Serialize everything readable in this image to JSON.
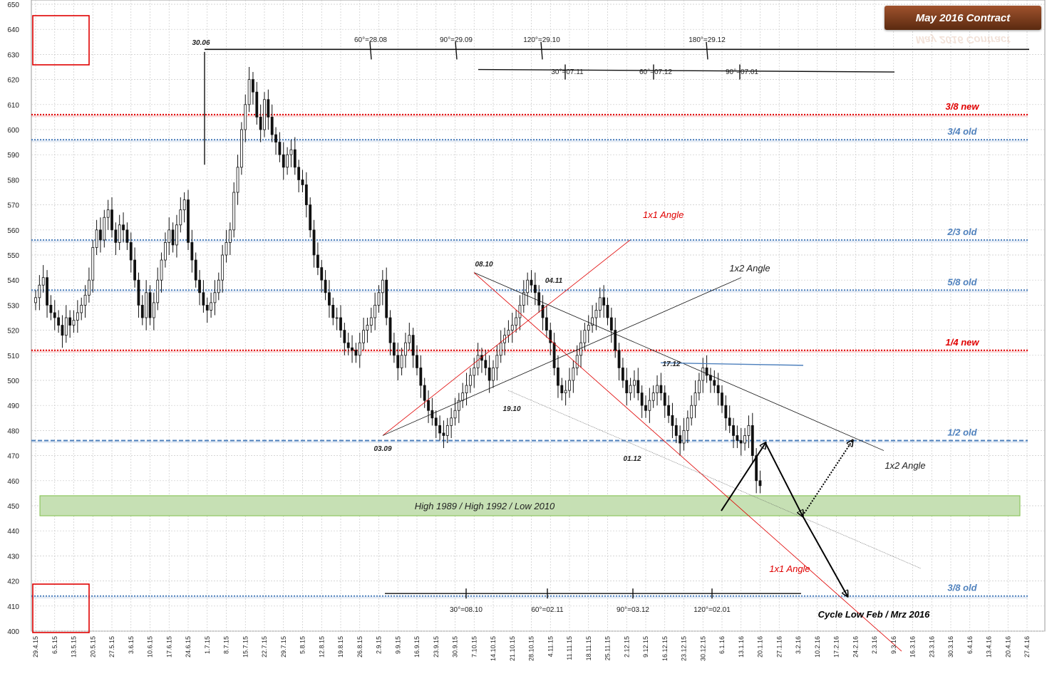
{
  "chart_data": {
    "type": "candlestick",
    "title": "May 2016 Contract",
    "ylim": [
      400,
      650
    ],
    "y_ticks": [
      400,
      410,
      420,
      430,
      440,
      450,
      460,
      470,
      480,
      490,
      500,
      510,
      520,
      530,
      540,
      550,
      560,
      570,
      580,
      590,
      600,
      610,
      620,
      630,
      640,
      650
    ],
    "x_ticks": [
      "29.4.15",
      "6.5.15",
      "13.5.15",
      "20.5.15",
      "27.5.15",
      "3.6.15",
      "10.6.15",
      "17.6.15",
      "24.6.15",
      "1.7.15",
      "8.7.15",
      "15.7.15",
      "22.7.15",
      "29.7.15",
      "5.8.15",
      "12.8.15",
      "19.8.15",
      "26.8.15",
      "2.9.15",
      "9.9.15",
      "16.9.15",
      "23.9.15",
      "30.9.15",
      "7.10.15",
      "14.10.15",
      "21.10.15",
      "28.10.15",
      "4.11.15",
      "11.11.15",
      "18.11.15",
      "25.11.15",
      "2.12.15",
      "9.12.15",
      "16.12.15",
      "23.12.15",
      "30.12.15",
      "6.1.16",
      "13.1.16",
      "20.1.16",
      "27.1.16",
      "3.2.16",
      "10.2.16",
      "17.2.16",
      "24.2.16",
      "2.3.16",
      "9.3.16",
      "16.3.16",
      "23.3.16",
      "30.3.16",
      "6.4.16",
      "13.4.16",
      "20.4.16",
      "27.4.16"
    ],
    "grid": true,
    "series_close": [
      [
        0,
        533
      ],
      [
        1,
        538
      ],
      [
        2,
        541
      ],
      [
        3,
        530
      ],
      [
        4,
        527
      ],
      [
        5,
        525
      ],
      [
        6,
        522
      ],
      [
        7,
        518
      ],
      [
        8,
        525
      ],
      [
        9,
        522
      ],
      [
        10,
        524
      ],
      [
        11,
        527
      ],
      [
        12,
        530
      ],
      [
        13,
        534
      ],
      [
        14,
        540
      ],
      [
        15,
        553
      ],
      [
        16,
        560
      ],
      [
        17,
        556
      ],
      [
        18,
        565
      ],
      [
        19,
        568
      ],
      [
        20,
        560
      ],
      [
        21,
        555
      ],
      [
        22,
        562
      ],
      [
        23,
        560
      ],
      [
        24,
        555
      ],
      [
        25,
        548
      ],
      [
        26,
        540
      ],
      [
        27,
        530
      ],
      [
        28,
        525
      ],
      [
        29,
        535
      ],
      [
        30,
        525
      ],
      [
        31,
        531
      ],
      [
        32,
        540
      ],
      [
        33,
        548
      ],
      [
        34,
        555
      ],
      [
        35,
        560
      ],
      [
        36,
        554
      ],
      [
        37,
        562
      ],
      [
        38,
        568
      ],
      [
        39,
        572
      ],
      [
        40,
        555
      ],
      [
        41,
        548
      ],
      [
        42,
        540
      ],
      [
        43,
        535
      ],
      [
        44,
        530
      ],
      [
        45,
        528
      ],
      [
        46,
        531
      ],
      [
        47,
        535
      ],
      [
        48,
        540
      ],
      [
        49,
        550
      ],
      [
        50,
        555
      ],
      [
        51,
        560
      ],
      [
        52,
        575
      ],
      [
        53,
        585
      ],
      [
        54,
        600
      ],
      [
        55,
        610
      ],
      [
        56,
        620
      ],
      [
        57,
        615
      ],
      [
        58,
        605
      ],
      [
        59,
        600
      ],
      [
        60,
        612
      ],
      [
        61,
        605
      ],
      [
        62,
        598
      ],
      [
        63,
        595
      ],
      [
        64,
        590
      ],
      [
        65,
        585
      ],
      [
        66,
        590
      ],
      [
        67,
        592
      ],
      [
        68,
        585
      ],
      [
        69,
        580
      ],
      [
        70,
        578
      ],
      [
        71,
        570
      ],
      [
        72,
        560
      ],
      [
        73,
        550
      ],
      [
        74,
        545
      ],
      [
        75,
        540
      ],
      [
        76,
        535
      ],
      [
        77,
        530
      ],
      [
        78,
        525
      ],
      [
        79,
        525
      ],
      [
        80,
        520
      ],
      [
        81,
        515
      ],
      [
        82,
        513
      ],
      [
        83,
        512
      ],
      [
        84,
        510
      ],
      [
        85,
        515
      ],
      [
        86,
        520
      ],
      [
        87,
        522
      ],
      [
        88,
        525
      ],
      [
        89,
        530
      ],
      [
        90,
        535
      ],
      [
        91,
        540
      ],
      [
        92,
        525
      ],
      [
        93,
        515
      ],
      [
        94,
        510
      ],
      [
        95,
        505
      ],
      [
        96,
        510
      ],
      [
        97,
        515
      ],
      [
        98,
        518
      ],
      [
        99,
        510
      ],
      [
        100,
        505
      ],
      [
        101,
        498
      ],
      [
        102,
        492
      ],
      [
        103,
        488
      ],
      [
        104,
        485
      ],
      [
        105,
        482
      ],
      [
        106,
        479
      ],
      [
        107,
        478
      ],
      [
        108,
        482
      ],
      [
        109,
        485
      ],
      [
        110,
        488
      ],
      [
        111,
        492
      ],
      [
        112,
        495
      ],
      [
        113,
        498
      ],
      [
        114,
        502
      ],
      [
        115,
        505
      ],
      [
        116,
        510
      ],
      [
        117,
        508
      ],
      [
        118,
        505
      ],
      [
        119,
        500
      ],
      [
        120,
        505
      ],
      [
        121,
        510
      ],
      [
        122,
        515
      ],
      [
        123,
        518
      ],
      [
        124,
        520
      ],
      [
        125,
        522
      ],
      [
        126,
        525
      ],
      [
        127,
        530
      ],
      [
        128,
        535
      ],
      [
        129,
        540
      ],
      [
        130,
        538
      ],
      [
        131,
        535
      ],
      [
        132,
        530
      ],
      [
        133,
        525
      ],
      [
        134,
        520
      ],
      [
        135,
        515
      ],
      [
        136,
        505
      ],
      [
        137,
        498
      ],
      [
        138,
        495
      ],
      [
        139,
        496
      ],
      [
        140,
        500
      ],
      [
        141,
        505
      ],
      [
        142,
        510
      ],
      [
        143,
        515
      ],
      [
        144,
        520
      ],
      [
        145,
        522
      ],
      [
        146,
        525
      ],
      [
        147,
        528
      ],
      [
        148,
        533
      ],
      [
        149,
        530
      ],
      [
        150,
        525
      ],
      [
        151,
        520
      ],
      [
        152,
        512
      ],
      [
        153,
        505
      ],
      [
        154,
        500
      ],
      [
        155,
        495
      ],
      [
        156,
        498
      ],
      [
        157,
        500
      ],
      [
        158,
        495
      ],
      [
        159,
        490
      ],
      [
        160,
        488
      ],
      [
        161,
        492
      ],
      [
        162,
        495
      ],
      [
        163,
        498
      ],
      [
        164,
        495
      ],
      [
        165,
        490
      ],
      [
        166,
        486
      ],
      [
        167,
        482
      ],
      [
        168,
        478
      ],
      [
        169,
        475
      ],
      [
        170,
        480
      ],
      [
        171,
        485
      ],
      [
        172,
        490
      ],
      [
        173,
        495
      ],
      [
        174,
        500
      ],
      [
        175,
        505
      ],
      [
        176,
        502
      ],
      [
        177,
        500
      ],
      [
        178,
        498
      ],
      [
        179,
        495
      ],
      [
        180,
        490
      ],
      [
        181,
        485
      ],
      [
        182,
        482
      ],
      [
        183,
        478
      ],
      [
        184,
        476
      ],
      [
        185,
        475
      ],
      [
        186,
        478
      ],
      [
        187,
        482
      ],
      [
        188,
        470
      ],
      [
        189,
        460
      ],
      [
        190,
        458
      ]
    ],
    "levels": [
      {
        "name": "3/8 new",
        "value": 606,
        "color": "#e00000",
        "style": "dotted"
      },
      {
        "name": "3/4 old",
        "value": 596,
        "color": "#4f81bd",
        "style": "dotted"
      },
      {
        "name": "2/3 old",
        "value": 556,
        "color": "#4f81bd",
        "style": "dotted"
      },
      {
        "name": "5/8 old",
        "value": 536,
        "color": "#4f81bd",
        "style": "dotted"
      },
      {
        "name": "1/4 new",
        "value": 512,
        "color": "#e00000",
        "style": "dotted"
      },
      {
        "name": "1/2 old",
        "value": 476,
        "color": "#4f81bd",
        "style": "dashed"
      },
      {
        "name": "3/8 old",
        "value": 414,
        "color": "#4f81bd",
        "style": "dotted"
      }
    ],
    "support_zone": {
      "label": "High 1989 / High 1992 / Low 2010",
      "low": 446,
      "high": 454,
      "color": "#c6e0b4"
    },
    "pivot_labels": [
      {
        "text": "30.06",
        "date": "30.06",
        "price": 631
      },
      {
        "text": "03.09",
        "date": "03.09",
        "price": 478
      },
      {
        "text": "08.10",
        "date": "08.10",
        "price": 543
      },
      {
        "text": "19.10",
        "date": "19.10",
        "price": 496
      },
      {
        "text": "04.11",
        "date": "04.11",
        "price": 533
      },
      {
        "text": "01.12",
        "date": "01.12",
        "price": 474
      },
      {
        "text": "17.12",
        "date": "17.12",
        "price": 506
      }
    ],
    "angle_labels": [
      {
        "text": "1x1 Angle",
        "color": "#e00000"
      },
      {
        "text": "1x2 Angle",
        "color": "#222222"
      },
      {
        "text": "1x2 Angle",
        "color": "#222222"
      },
      {
        "text": "1x1 Angle",
        "color": "#e00000"
      }
    ],
    "time_cycles_top": [
      "60°=28.08",
      "90°=29.09",
      "120°=29.10",
      "180°=29.12"
    ],
    "time_cycles_mid": [
      "30°=07.11",
      "60°=07.12",
      "90°=07.01"
    ],
    "time_cycles_bottom": [
      "30°=08.10",
      "60°=02.11",
      "90°=03.12",
      "120°=02.01"
    ],
    "forecast_label": "Cycle Low Feb / Mrz 2016"
  }
}
